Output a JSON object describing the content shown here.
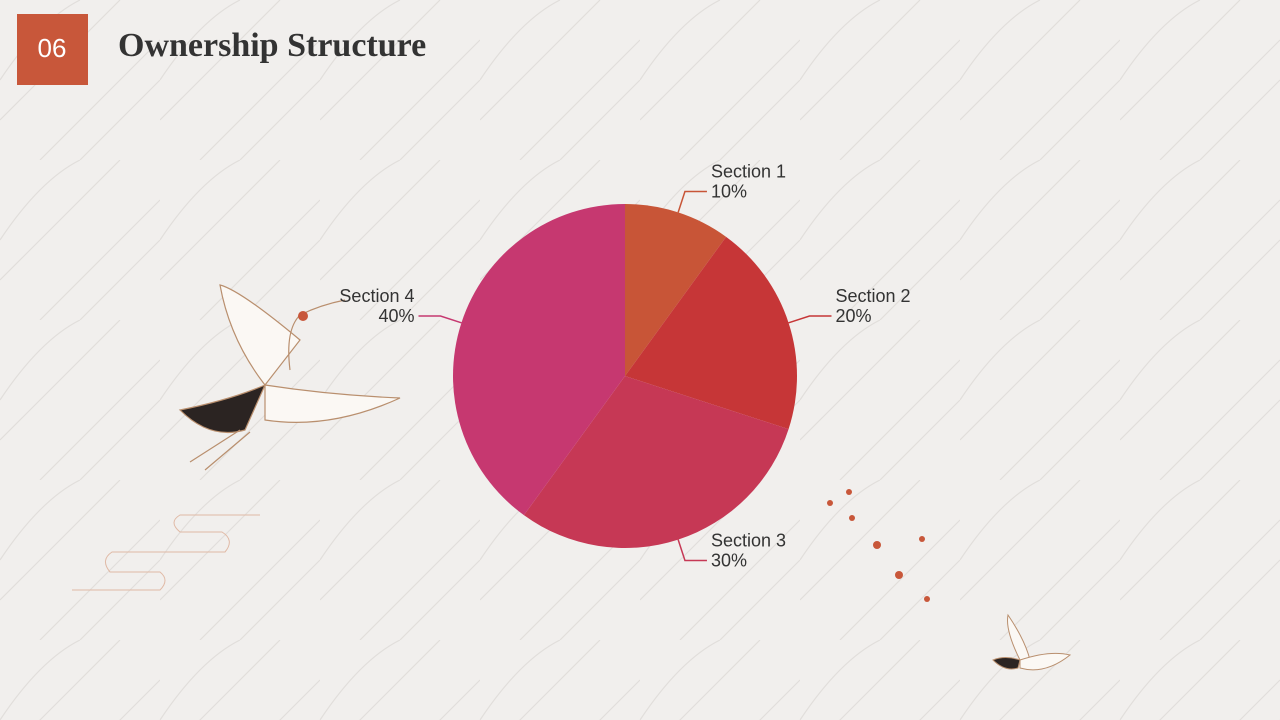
{
  "slide_number": "06",
  "chart_data": {
    "type": "pie",
    "title": "Ownership Structure",
    "categories": [
      "Section 1",
      "Section 2",
      "Section 3",
      "Section 4"
    ],
    "values": [
      10,
      20,
      30,
      40
    ],
    "value_labels": [
      "10%",
      "20%",
      "30%",
      "40%"
    ],
    "colors": [
      "#c85537",
      "#c63637",
      "#c63855",
      "#c63870"
    ]
  }
}
